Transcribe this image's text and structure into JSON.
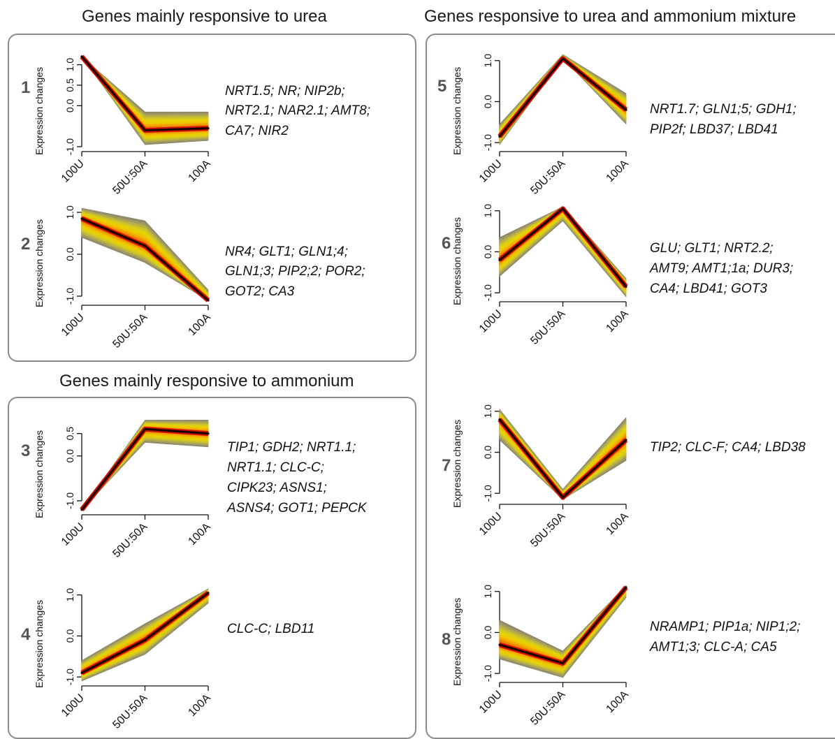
{
  "sections": [
    {
      "title": "Genes mainly responsive to urea"
    },
    {
      "title": "Genes mainly responsive to ammonium"
    },
    {
      "title": "Genes responsive to urea and ammonium mixture"
    }
  ],
  "chart_data": [
    {
      "type": "line",
      "panel": "1",
      "x": [
        "100U",
        "50U:50A",
        "100A"
      ],
      "values": [
        1.2,
        -0.6,
        -0.55
      ],
      "upper": [
        1.2,
        -0.15,
        -0.15
      ],
      "lower": [
        1.2,
        -0.95,
        -0.85
      ],
      "ylabel": "Expression changes",
      "yticks": [
        "-1.0",
        "0.0",
        "0.5",
        "1.0"
      ],
      "ytick_values": [
        -1.0,
        0.0,
        0.5,
        1.0
      ],
      "ylim": [
        -1.05,
        1.3
      ],
      "genes": [
        "NRT1.5; NR; NIP2b;",
        "NRT2.1; NAR2.1; AMT8;",
        "CA7; NIR2"
      ]
    },
    {
      "type": "line",
      "panel": "2",
      "x": [
        "100U",
        "50U:50A",
        "100A"
      ],
      "values": [
        0.85,
        0.2,
        -1.1
      ],
      "upper": [
        1.1,
        0.8,
        -0.85
      ],
      "lower": [
        0.4,
        -0.2,
        -1.1
      ],
      "ylabel": "Expression changes",
      "yticks": [
        "-1.0",
        "0.0",
        "1.0"
      ],
      "ytick_values": [
        -1.0,
        0.0,
        1.0
      ],
      "ylim": [
        -1.15,
        1.15
      ],
      "genes": [
        "NR4; GLT1; GLN1;4;",
        "GLN1;3; PIP2;2; POR2;",
        "GOT2; CA3"
      ]
    },
    {
      "type": "line",
      "panel": "3",
      "x": [
        "100U",
        "50U:50A",
        "100A"
      ],
      "values": [
        -1.2,
        0.6,
        0.5
      ],
      "upper": [
        -1.2,
        0.8,
        0.8
      ],
      "lower": [
        -1.2,
        0.3,
        0.2
      ],
      "ylabel": "Expression changes",
      "yticks": [
        "-1.0",
        "0.0",
        "0.5"
      ],
      "ytick_values": [
        -1.0,
        0.0,
        0.5
      ],
      "ylim": [
        -1.25,
        0.9
      ],
      "genes": [
        "TIP1; GDH2; NRT1.1;",
        "NRT1.1; CLC-C;",
        "CIPK23; ASNS1;",
        "ASNS4; GOT1; PEPCK"
      ]
    },
    {
      "type": "line",
      "panel": "4",
      "x": [
        "100U",
        "50U:50A",
        "100A"
      ],
      "values": [
        -0.9,
        -0.1,
        1.05
      ],
      "upper": [
        -0.6,
        0.3,
        1.15
      ],
      "lower": [
        -1.1,
        -0.45,
        0.8
      ],
      "ylabel": "Expression changes",
      "yticks": [
        "-1.0",
        "0.0",
        "1.0"
      ],
      "ytick_values": [
        -1.0,
        0.0,
        1.0
      ],
      "ylim": [
        -1.15,
        1.2
      ],
      "genes": [
        "CLC-C; LBD11"
      ]
    },
    {
      "type": "line",
      "panel": "5",
      "x": [
        "100U",
        "50U:50A",
        "100A"
      ],
      "values": [
        -0.85,
        1.05,
        -0.2
      ],
      "upper": [
        -0.55,
        1.15,
        0.2
      ],
      "lower": [
        -1.05,
        1.05,
        -0.55
      ],
      "ylabel": "Expression changes",
      "yticks": [
        "-1.0",
        "0.0",
        "1.0"
      ],
      "ytick_values": [
        -1.0,
        0.0,
        1.0
      ],
      "ylim": [
        -1.15,
        1.2
      ],
      "genes": [
        "NRT1.7; GLN1;5; GDH1;",
        "PIP2f; LBD37; LBD41"
      ]
    },
    {
      "type": "line",
      "panel": "6",
      "x": [
        "100U",
        "50U:50A",
        "100A"
      ],
      "values": [
        -0.2,
        1.05,
        -0.85
      ],
      "upper": [
        0.35,
        1.1,
        -0.65
      ],
      "lower": [
        -0.6,
        0.75,
        -1.1
      ],
      "ylabel": "Expression changes",
      "yticks": [
        "-1.0",
        "0.0",
        "1.0"
      ],
      "ytick_values": [
        -1.0,
        0.0,
        1.0
      ],
      "ylim": [
        -1.15,
        1.2
      ],
      "genes": [
        "GLU; GLT1; NRT2.2;",
        "AMT9; AMT1;1a; DUR3;",
        "CA4; LBD41; GOT3"
      ]
    },
    {
      "type": "line",
      "panel": "7",
      "x": [
        "100U",
        "50U:50A",
        "100A"
      ],
      "values": [
        0.8,
        -1.1,
        0.3
      ],
      "upper": [
        1.05,
        -0.9,
        0.85
      ],
      "lower": [
        0.3,
        -1.15,
        -0.2
      ],
      "ylabel": "Expression changes",
      "yticks": [
        "-1.0",
        "0.0",
        "1.0"
      ],
      "ytick_values": [
        -1.0,
        0.0,
        1.0
      ],
      "ylim": [
        -1.2,
        1.15
      ],
      "genes": [
        "TIP2; CLC-F; CA4; LBD38"
      ]
    },
    {
      "type": "line",
      "panel": "8",
      "x": [
        "100U",
        "50U:50A",
        "100A"
      ],
      "values": [
        -0.3,
        -0.75,
        1.1
      ],
      "upper": [
        0.3,
        -0.45,
        1.15
      ],
      "lower": [
        -0.65,
        -1.1,
        0.85
      ],
      "ylabel": "Expression changes",
      "yticks": [
        "-1.0",
        "0.0",
        "1.0"
      ],
      "ytick_values": [
        -1.0,
        0.0,
        1.0
      ],
      "ylim": [
        -1.15,
        1.2
      ],
      "genes": [
        "NRAMP1; PIP1a; NIP1;2;",
        "AMT1;3; CLC-A; CA5"
      ]
    }
  ]
}
